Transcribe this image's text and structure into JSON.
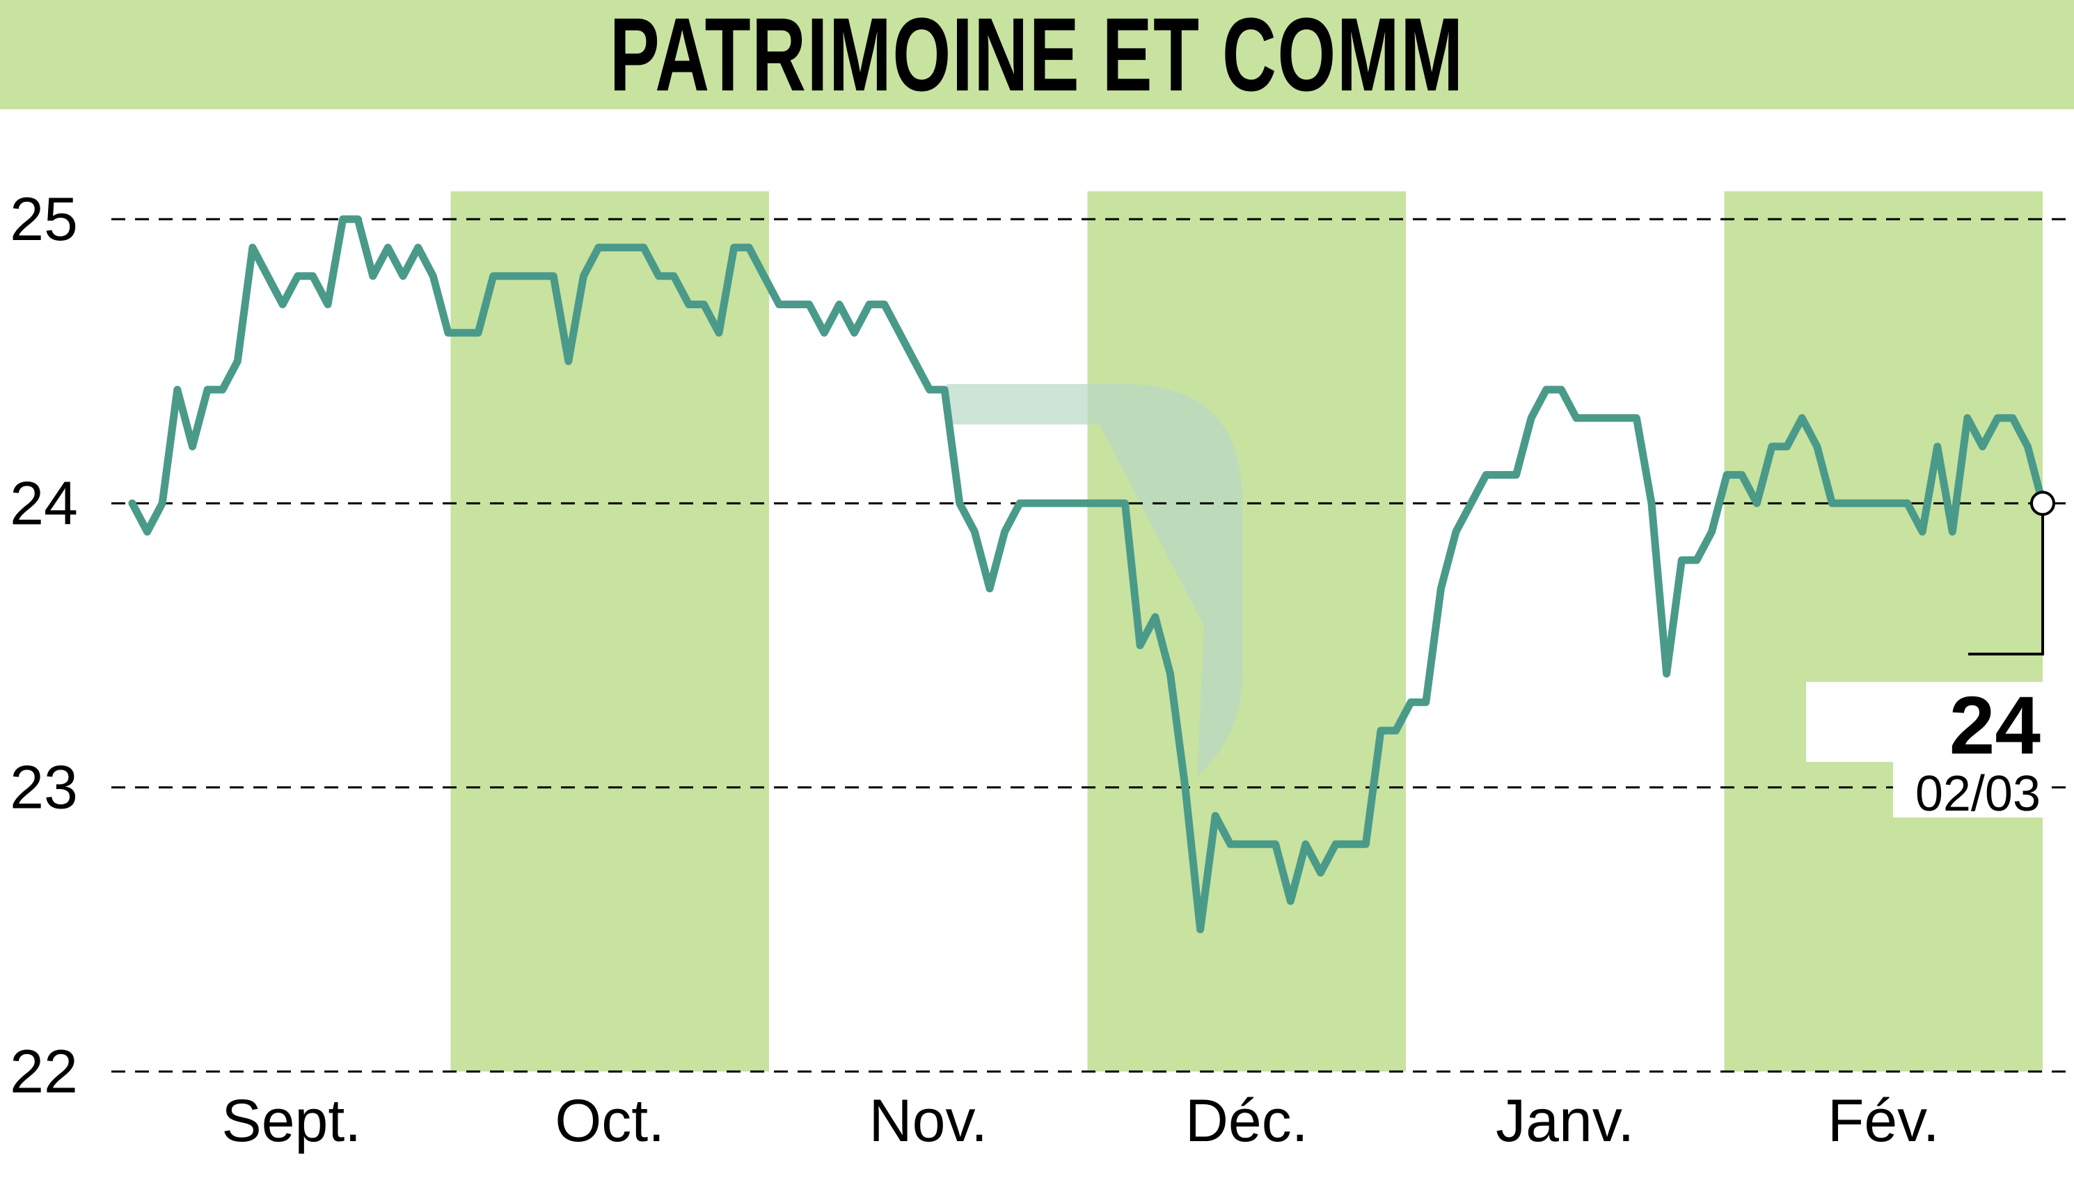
{
  "title": "PATRIMOINE ET COMM",
  "colors": {
    "band": "#c8e2a0",
    "line": "#4a9a8a",
    "watermark": "#b8d9c4",
    "grid": "#000000"
  },
  "chart_data": {
    "type": "line",
    "title": "PATRIMOINE ET COMM",
    "y_ticks": [
      "22",
      "23",
      "24",
      "25"
    ],
    "ylim": [
      22,
      25
    ],
    "grid": "dashed horizontal",
    "months": [
      "Sept.",
      "Oct.",
      "Nov.",
      "Déc.",
      "Janv.",
      "Fév."
    ],
    "shaded_months": [
      "Oct.",
      "Déc.",
      "Fév."
    ],
    "last_value": "24",
    "last_date": "02/03",
    "series": [
      {
        "values": [
          24.0,
          23.9,
          24.0,
          24.4,
          24.2,
          24.4,
          24.4,
          24.5,
          24.9,
          24.8,
          24.7,
          24.8,
          24.8,
          24.7,
          25.0,
          25.0,
          24.8,
          24.9,
          24.8,
          24.9,
          24.8,
          24.6,
          24.6,
          24.6,
          24.8,
          24.8,
          24.8,
          24.8,
          24.8,
          24.5,
          24.8,
          24.9,
          24.9,
          24.9,
          24.9,
          24.8,
          24.8,
          24.7,
          24.7,
          24.6,
          24.9,
          24.9,
          24.8,
          24.7,
          24.7,
          24.7,
          24.6,
          24.7,
          24.6,
          24.7,
          24.7,
          24.6,
          24.5,
          24.4,
          24.4,
          24.0,
          23.9,
          23.7,
          23.9,
          24.0,
          24.0,
          24.0,
          24.0,
          24.0,
          24.0,
          24.0,
          24.0,
          23.5,
          23.6,
          23.4,
          23.0,
          22.5,
          22.9,
          22.8,
          22.8,
          22.8,
          22.8,
          22.6,
          22.8,
          22.7,
          22.8,
          22.8,
          22.8,
          23.2,
          23.2,
          23.3,
          23.3,
          23.7,
          23.9,
          24.0,
          24.1,
          24.1,
          24.1,
          24.3,
          24.4,
          24.4,
          24.3,
          24.3,
          24.3,
          24.3,
          24.3,
          24.0,
          23.4,
          23.8,
          23.8,
          23.9,
          24.1,
          24.1,
          24.0,
          24.2,
          24.2,
          24.3,
          24.2,
          24.0,
          24.0,
          24.0,
          24.0,
          24.0,
          24.0,
          23.9,
          24.2,
          23.9,
          24.3,
          24.2,
          24.3,
          24.3,
          24.2,
          24.0
        ]
      }
    ]
  }
}
